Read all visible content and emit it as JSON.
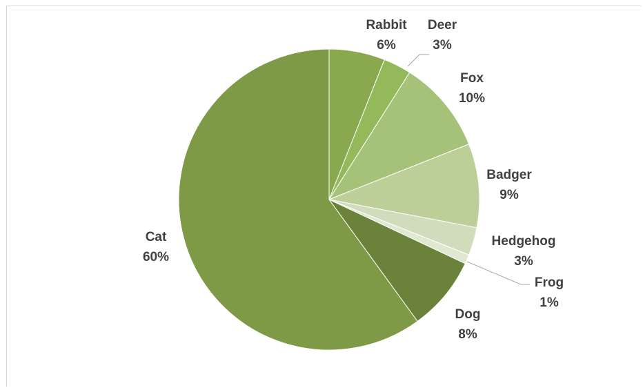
{
  "chart_data": {
    "type": "pie",
    "title": "",
    "slices": [
      {
        "label": "Rabbit",
        "pct_label": "6%",
        "value": 6,
        "color": "#8aa94e"
      },
      {
        "label": "Deer",
        "pct_label": "3%",
        "value": 3,
        "color": "#93b95a"
      },
      {
        "label": "Fox",
        "pct_label": "10%",
        "value": 10,
        "color": "#a6c278"
      },
      {
        "label": "Badger",
        "pct_label": "9%",
        "value": 9,
        "color": "#bccf98"
      },
      {
        "label": "Hedgehog",
        "pct_label": "3%",
        "value": 3,
        "color": "#d0dcbb"
      },
      {
        "label": "Frog",
        "pct_label": "1%",
        "value": 1,
        "color": "#e0e8d2"
      },
      {
        "label": "Dog",
        "pct_label": "8%",
        "value": 8,
        "color": "#6a8239"
      },
      {
        "label": "Cat",
        "pct_label": "60%",
        "value": 60,
        "color": "#7f9a47"
      }
    ],
    "start_angle_deg": 0,
    "direction": "clockwise",
    "legend": "none",
    "label_style": "category and percentage outside slices",
    "leader_lines": [
      "Deer",
      "Frog"
    ]
  }
}
